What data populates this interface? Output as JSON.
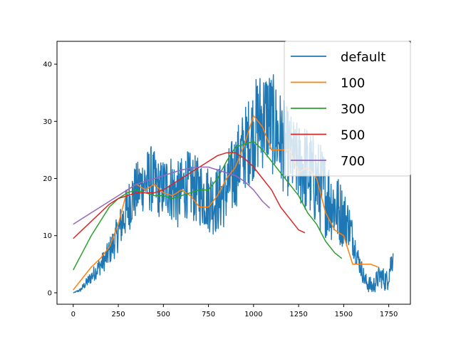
{
  "chart_data": {
    "type": "line",
    "title": "",
    "xlabel": "",
    "ylabel": "",
    "xlim": [
      -90,
      1870
    ],
    "ylim": [
      -2,
      44
    ],
    "x_ticks": [
      0,
      250,
      500,
      750,
      1000,
      1250,
      1500,
      1750
    ],
    "y_ticks": [
      0,
      10,
      20,
      30,
      40
    ],
    "grid": false,
    "legend_position": "top-right",
    "series": [
      {
        "name": "default",
        "color": "#1f77b4",
        "anchors": {
          "x": [
            0,
            40,
            80,
            130,
            180,
            230,
            280,
            330,
            380,
            430,
            480,
            530,
            580,
            630,
            680,
            730,
            780,
            830,
            880,
            930,
            980,
            1030,
            1080,
            1130,
            1180,
            1230,
            1280,
            1330,
            1380,
            1430,
            1480,
            1530,
            1580,
            1620,
            1660,
            1700,
            1740,
            1775
          ],
          "y": [
            0,
            0.5,
            2,
            4,
            6,
            9,
            13,
            17,
            19,
            20,
            18,
            19,
            17,
            19,
            18,
            17,
            16,
            17,
            20,
            24,
            27,
            30,
            31,
            28,
            25,
            23,
            22,
            20,
            18,
            16,
            14,
            12,
            6,
            2,
            1,
            3,
            2,
            7
          ]
        },
        "noise": [
          0,
          0.3,
          1,
          1.5,
          2,
          3,
          4,
          5,
          5,
          6,
          5,
          6,
          6,
          6,
          6,
          6,
          6,
          6,
          7,
          7,
          8,
          9,
          9,
          9,
          8,
          7,
          8,
          8,
          8,
          7,
          6,
          4,
          2,
          1.5,
          1.5,
          2,
          2,
          3
        ],
        "x_max": 1775
      },
      {
        "name": "100",
        "color": "#ff7f0e",
        "x": [
          0,
          50,
          100,
          150,
          200,
          250,
          300,
          350,
          400,
          450,
          500,
          550,
          600,
          650,
          700,
          750,
          800,
          850,
          900,
          950,
          1000,
          1050,
          1100,
          1150,
          1200,
          1250,
          1300,
          1350,
          1400,
          1450,
          1500,
          1550,
          1600,
          1650,
          1690
        ],
        "y": [
          0.5,
          2.5,
          4.5,
          6,
          8,
          12,
          18,
          19,
          18,
          19,
          17.5,
          17,
          18,
          17,
          15,
          15,
          17,
          20,
          22,
          26,
          31,
          29,
          25,
          25,
          25,
          21,
          22,
          20,
          14,
          11,
          10,
          5,
          5,
          5,
          4.5
        ]
      },
      {
        "name": "300",
        "color": "#2ca02c",
        "x": [
          0,
          50,
          100,
          150,
          200,
          250,
          300,
          350,
          400,
          450,
          500,
          550,
          600,
          650,
          700,
          750,
          800,
          850,
          900,
          950,
          1000,
          1050,
          1100,
          1150,
          1200,
          1250,
          1300,
          1350,
          1400,
          1450,
          1490
        ],
        "y": [
          4,
          7,
          10,
          12.5,
          15,
          16.5,
          17.5,
          18,
          17.5,
          17,
          17,
          16.5,
          17,
          17.5,
          18,
          18,
          20,
          23,
          25.5,
          26,
          26.5,
          25,
          23,
          21,
          19,
          17,
          14,
          12,
          9,
          7,
          6
        ]
      },
      {
        "name": "500",
        "color": "#d62728",
        "x": [
          0,
          50,
          100,
          150,
          200,
          250,
          300,
          350,
          400,
          450,
          500,
          550,
          600,
          650,
          700,
          750,
          800,
          850,
          900,
          950,
          1000,
          1050,
          1100,
          1150,
          1200,
          1250,
          1285
        ],
        "y": [
          9.5,
          11,
          12.5,
          14,
          15.5,
          16.5,
          17,
          17.5,
          17.5,
          17.5,
          18,
          19,
          20,
          21,
          22,
          23,
          24,
          24.5,
          24.5,
          23.5,
          22,
          20,
          18,
          15,
          13,
          11,
          10.5
        ]
      },
      {
        "name": "700",
        "color": "#9467bd",
        "x": [
          0,
          50,
          100,
          150,
          200,
          250,
          300,
          350,
          400,
          450,
          500,
          550,
          600,
          650,
          700,
          750,
          800,
          850,
          900,
          950,
          1000,
          1050,
          1090
        ],
        "y": [
          12,
          13,
          14,
          15,
          16,
          17,
          18,
          19,
          19.5,
          20,
          20.5,
          21,
          21.5,
          21.8,
          22,
          22,
          21.5,
          21,
          20.5,
          19.5,
          18,
          16,
          14.8
        ]
      }
    ]
  }
}
